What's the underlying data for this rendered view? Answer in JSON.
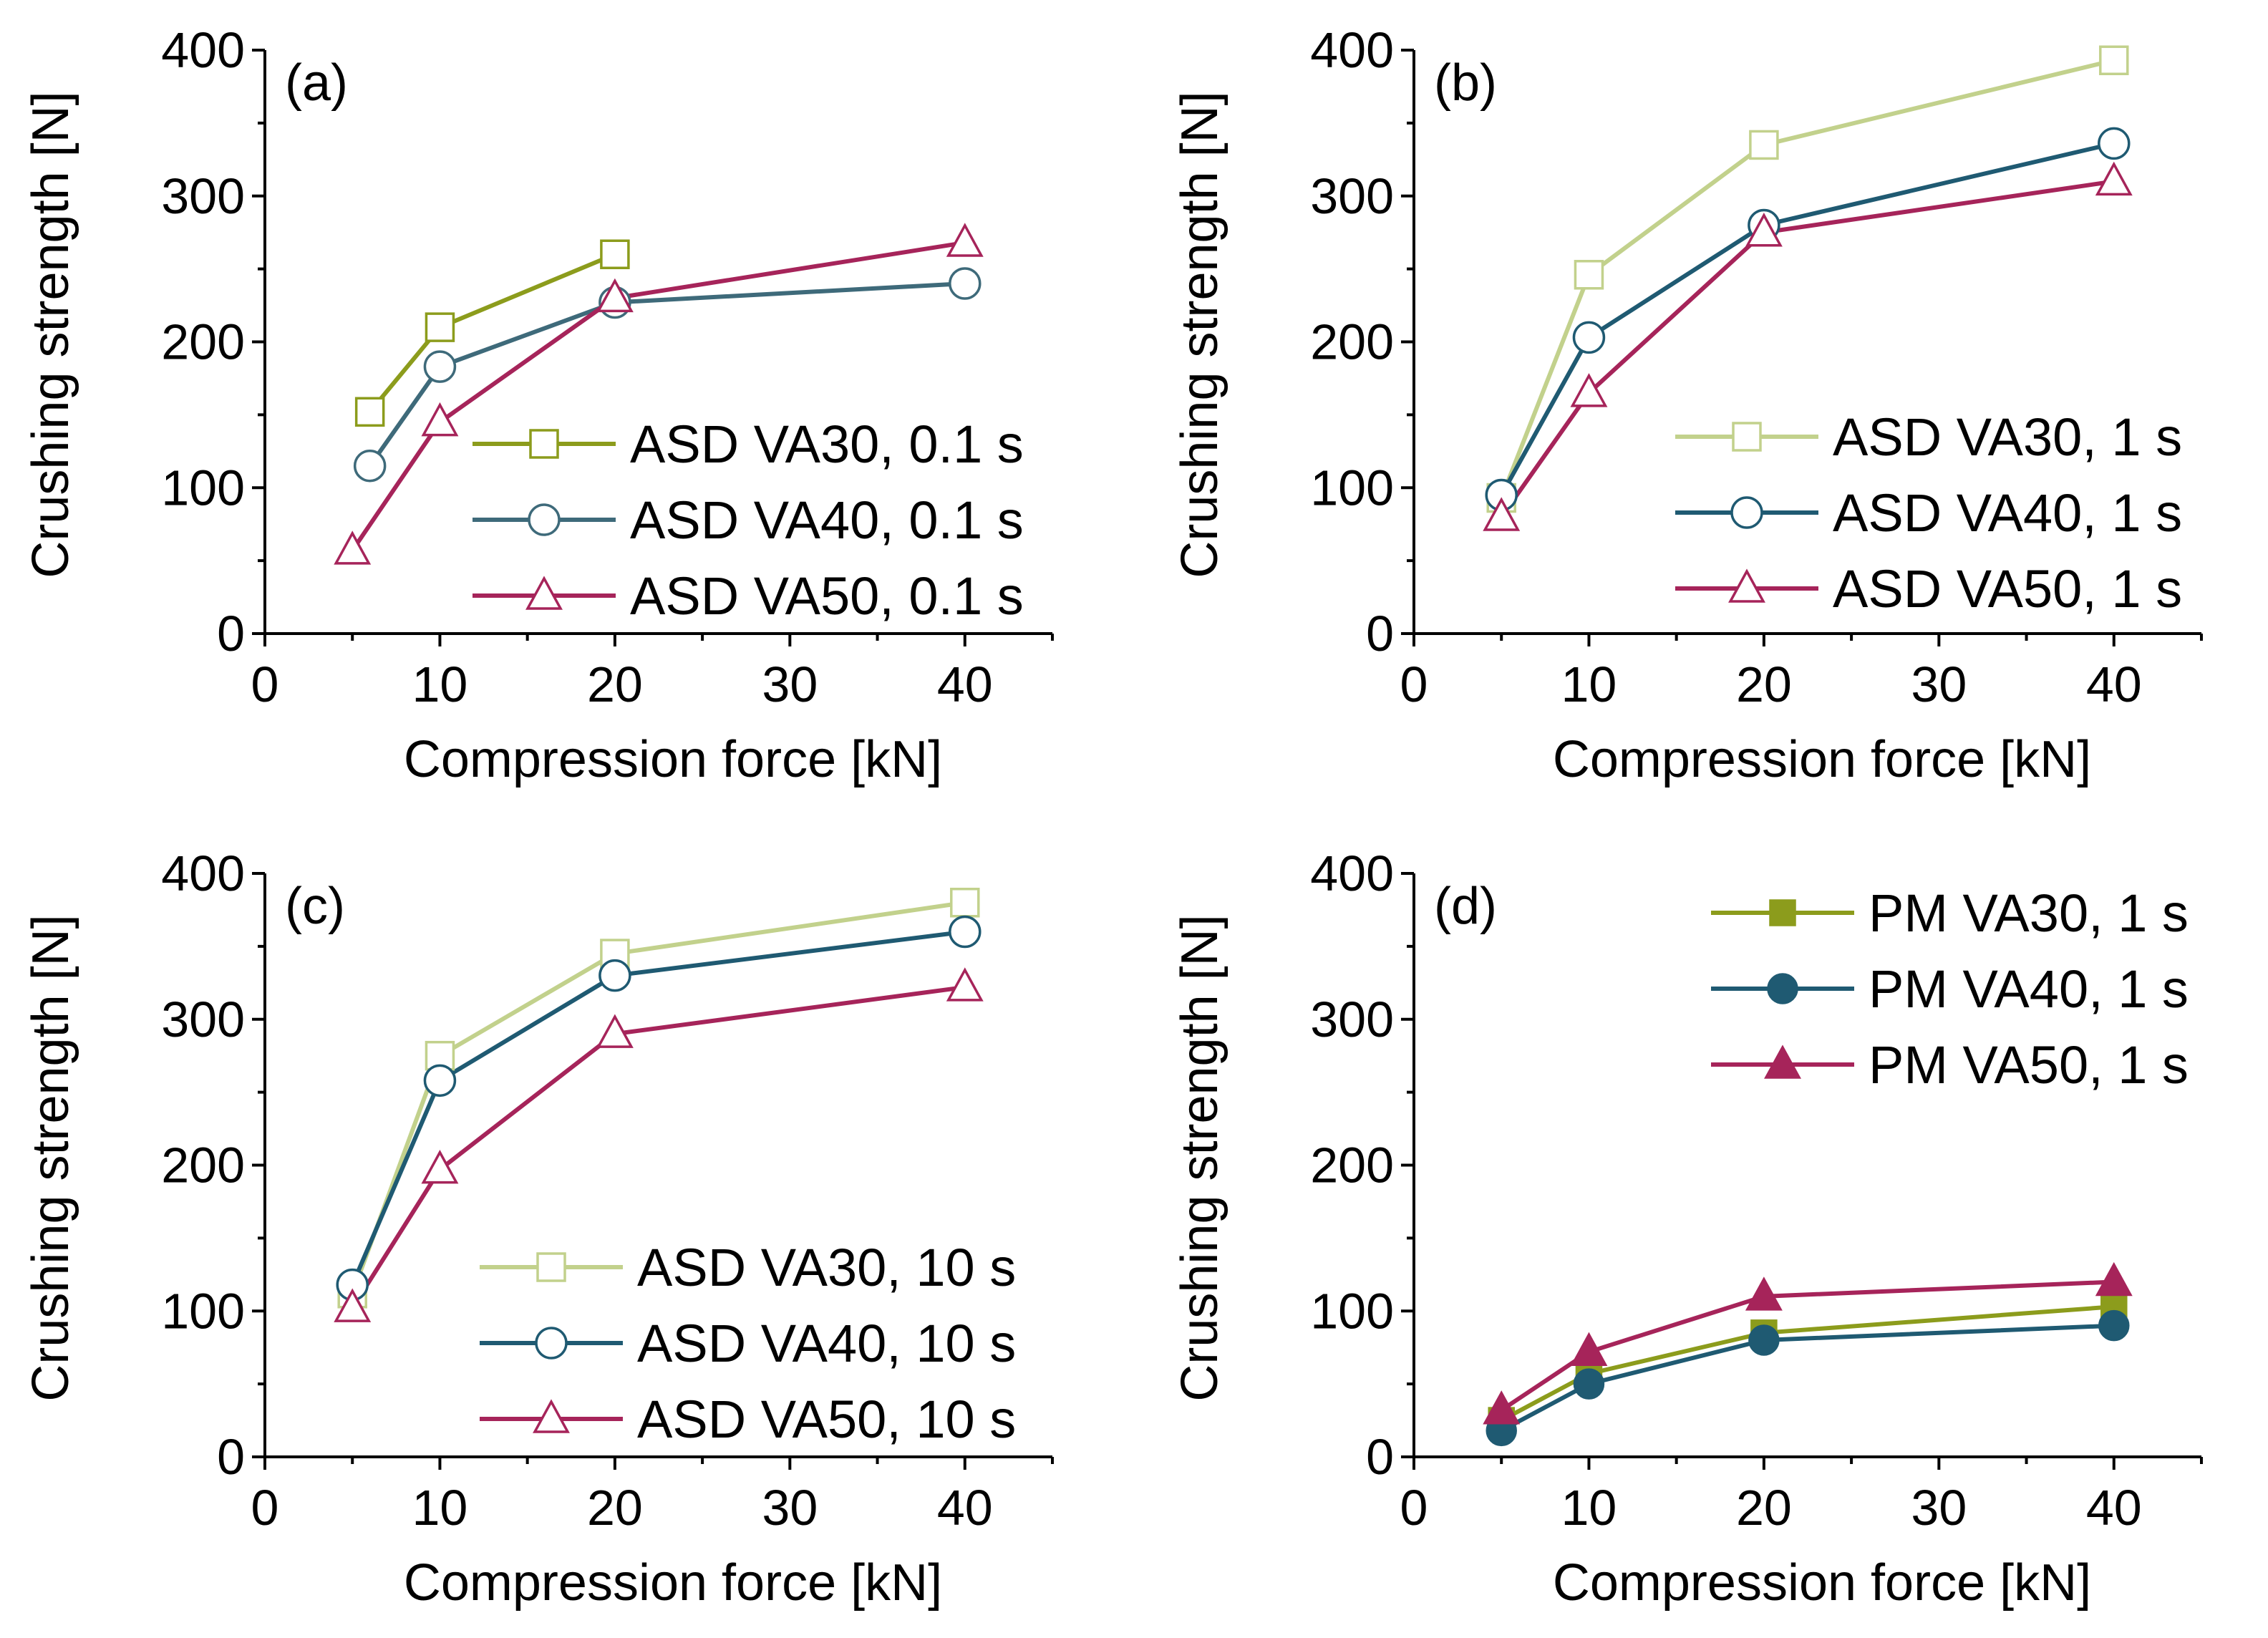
{
  "colors": {
    "olive": "#8c9c1c",
    "light_olive": "#c2d18c",
    "teal": "#3e6a7a",
    "dark_teal": "#1f5a72",
    "crimson": "#a6245a",
    "plum": "#a6245a"
  },
  "chart_data": [
    {
      "type": "line",
      "panel": "(a)",
      "xlabel": "Compression force [kN]",
      "ylabel": "Crushing strength [N]",
      "xlim": [
        0,
        45
      ],
      "ylim": [
        0,
        400
      ],
      "xticks": [
        "0",
        "10",
        "20",
        "30",
        "40"
      ],
      "yticks": [
        "0",
        "100",
        "200",
        "300",
        "400"
      ],
      "legend_position": "middle-right",
      "series": [
        {
          "name": "ASD VA30, 0.1 s",
          "color": "#8c9c1c",
          "marker": "square",
          "filled": false,
          "x": [
            6,
            10,
            20
          ],
          "y": [
            152,
            210,
            260
          ]
        },
        {
          "name": "ASD VA40, 0.1 s",
          "color": "#3e6a7a",
          "marker": "circle",
          "filled": false,
          "x": [
            6,
            10,
            20,
            40
          ],
          "y": [
            115,
            183,
            227,
            240
          ]
        },
        {
          "name": "ASD VA50, 0.1 s",
          "color": "#a6245a",
          "marker": "triangle",
          "filled": false,
          "x": [
            5,
            10,
            20,
            40
          ],
          "y": [
            57,
            145,
            230,
            268
          ]
        }
      ]
    },
    {
      "type": "line",
      "panel": "(b)",
      "xlabel": "Compression force [kN]",
      "ylabel": "Crushing strength [N]",
      "xlim": [
        0,
        45
      ],
      "ylim": [
        0,
        400
      ],
      "xticks": [
        "0",
        "10",
        "20",
        "30",
        "40"
      ],
      "yticks": [
        "0",
        "100",
        "200",
        "300",
        "400"
      ],
      "legend_position": "lower-right",
      "series": [
        {
          "name": "ASD VA30, 1 s",
          "color": "#c2d18c",
          "marker": "square",
          "filled": false,
          "x": [
            5,
            10,
            20,
            40
          ],
          "y": [
            93,
            246,
            335,
            393
          ]
        },
        {
          "name": "ASD VA40, 1 s",
          "color": "#1f5a72",
          "marker": "circle",
          "filled": false,
          "x": [
            5,
            10,
            20,
            40
          ],
          "y": [
            95,
            203,
            280,
            336
          ]
        },
        {
          "name": "ASD VA50, 1 s",
          "color": "#a6245a",
          "marker": "triangle",
          "filled": false,
          "x": [
            5,
            10,
            20,
            40
          ],
          "y": [
            80,
            165,
            275,
            310
          ]
        }
      ]
    },
    {
      "type": "line",
      "panel": "(c)",
      "xlabel": "Compression force [kN]",
      "ylabel": "Crushing strength [N]",
      "xlim": [
        0,
        45
      ],
      "ylim": [
        0,
        400
      ],
      "xticks": [
        "0",
        "10",
        "20",
        "30",
        "40"
      ],
      "yticks": [
        "0",
        "100",
        "200",
        "300",
        "400"
      ],
      "legend_position": "lower-right",
      "series": [
        {
          "name": "ASD VA30, 10 s",
          "color": "#c2d18c",
          "marker": "square",
          "filled": false,
          "x": [
            5,
            10,
            20,
            40
          ],
          "y": [
            112,
            275,
            345,
            380
          ]
        },
        {
          "name": "ASD VA40, 10 s",
          "color": "#1f5a72",
          "marker": "circle",
          "filled": false,
          "x": [
            5,
            10,
            20,
            40
          ],
          "y": [
            118,
            258,
            330,
            360
          ]
        },
        {
          "name": "ASD VA50, 10 s",
          "color": "#a6245a",
          "marker": "triangle",
          "filled": false,
          "x": [
            5,
            10,
            20,
            40
          ],
          "y": [
            102,
            197,
            290,
            322
          ]
        }
      ]
    },
    {
      "type": "line",
      "panel": "(d)",
      "xlabel": "Compression force [kN]",
      "ylabel": "Crushing strength [N]",
      "xlim": [
        0,
        45
      ],
      "ylim": [
        0,
        400
      ],
      "xticks": [
        "0",
        "10",
        "20",
        "30",
        "40"
      ],
      "yticks": [
        "0",
        "100",
        "200",
        "300",
        "400"
      ],
      "legend_position": "top-right",
      "series": [
        {
          "name": "PM VA30, 1 s",
          "color": "#8c9c1c",
          "marker": "square",
          "filled": true,
          "x": [
            5,
            10,
            20,
            40
          ],
          "y": [
            25,
            57,
            85,
            103
          ]
        },
        {
          "name": "PM VA40, 1 s",
          "color": "#1f5a72",
          "marker": "circle",
          "filled": true,
          "x": [
            5,
            10,
            20,
            40
          ],
          "y": [
            18,
            50,
            80,
            90
          ]
        },
        {
          "name": "PM VA50, 1 s",
          "color": "#a6245a",
          "marker": "triangle",
          "filled": true,
          "x": [
            5,
            10,
            20,
            40
          ],
          "y": [
            32,
            72,
            110,
            120
          ]
        }
      ]
    }
  ]
}
